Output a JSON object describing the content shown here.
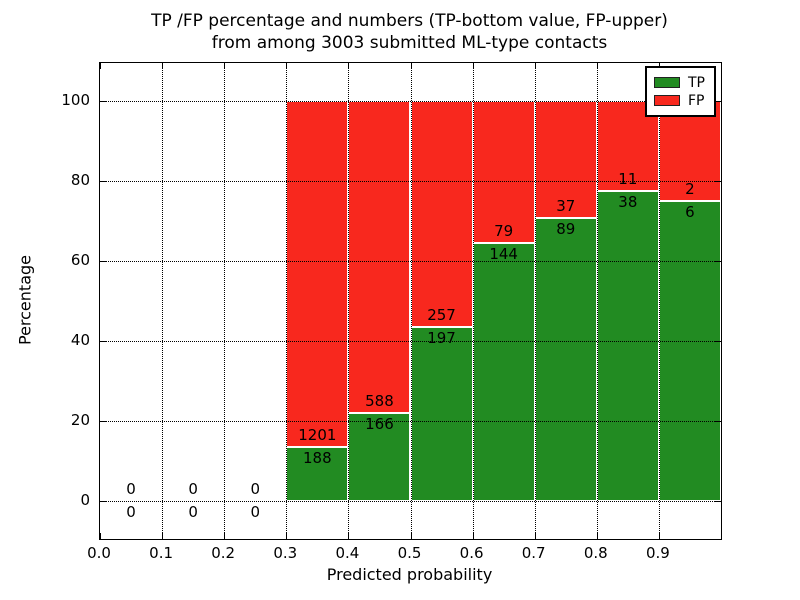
{
  "title": {
    "line1": "TP /FP percentage and numbers (TP-bottom value, FP-upper)",
    "line2": "from among 3003 submitted ML-type contacts"
  },
  "chart_data": {
    "type": "bar",
    "stacked": true,
    "title": "TP /FP percentage and numbers (TP-bottom value, FP-upper) from among 3003 submitted ML-type contacts",
    "xlabel": "Predicted probability",
    "ylabel": "Percentage",
    "xlim": [
      0.0,
      1.0
    ],
    "ylim": [
      0,
      100
    ],
    "grid": "dotted, drawn above bars",
    "legend_position": "upper right",
    "x_ticks": [
      "0.0",
      "0.1",
      "0.2",
      "0.3",
      "0.4",
      "0.5",
      "0.6",
      "0.7",
      "0.8",
      "0.9"
    ],
    "y_ticks": [
      0,
      20,
      40,
      60,
      80,
      100
    ],
    "series": [
      {
        "name": "TP",
        "color": "#228b22"
      },
      {
        "name": "FP",
        "color": "#f8281e"
      }
    ],
    "bar_edge_color": "#ffffff",
    "total_contacts": 3003,
    "bins": [
      {
        "x_start": 0.0,
        "tp": 0,
        "fp": 0,
        "tp_pct": 0
      },
      {
        "x_start": 0.1,
        "tp": 0,
        "fp": 0,
        "tp_pct": 0
      },
      {
        "x_start": 0.2,
        "tp": 0,
        "fp": 0,
        "tp_pct": 0
      },
      {
        "x_start": 0.3,
        "tp": 188,
        "fp": 1201,
        "tp_pct": 13.5
      },
      {
        "x_start": 0.4,
        "tp": 166,
        "fp": 588,
        "tp_pct": 22.0
      },
      {
        "x_start": 0.5,
        "tp": 197,
        "fp": 257,
        "tp_pct": 43.4
      },
      {
        "x_start": 0.6,
        "tp": 144,
        "fp": 79,
        "tp_pct": 64.6
      },
      {
        "x_start": 0.7,
        "tp": 89,
        "fp": 37,
        "tp_pct": 70.6
      },
      {
        "x_start": 0.8,
        "tp": 38,
        "fp": 11,
        "tp_pct": 77.6
      },
      {
        "x_start": 0.9,
        "tp": 6,
        "fp": 2,
        "tp_pct": 75.0
      }
    ]
  }
}
